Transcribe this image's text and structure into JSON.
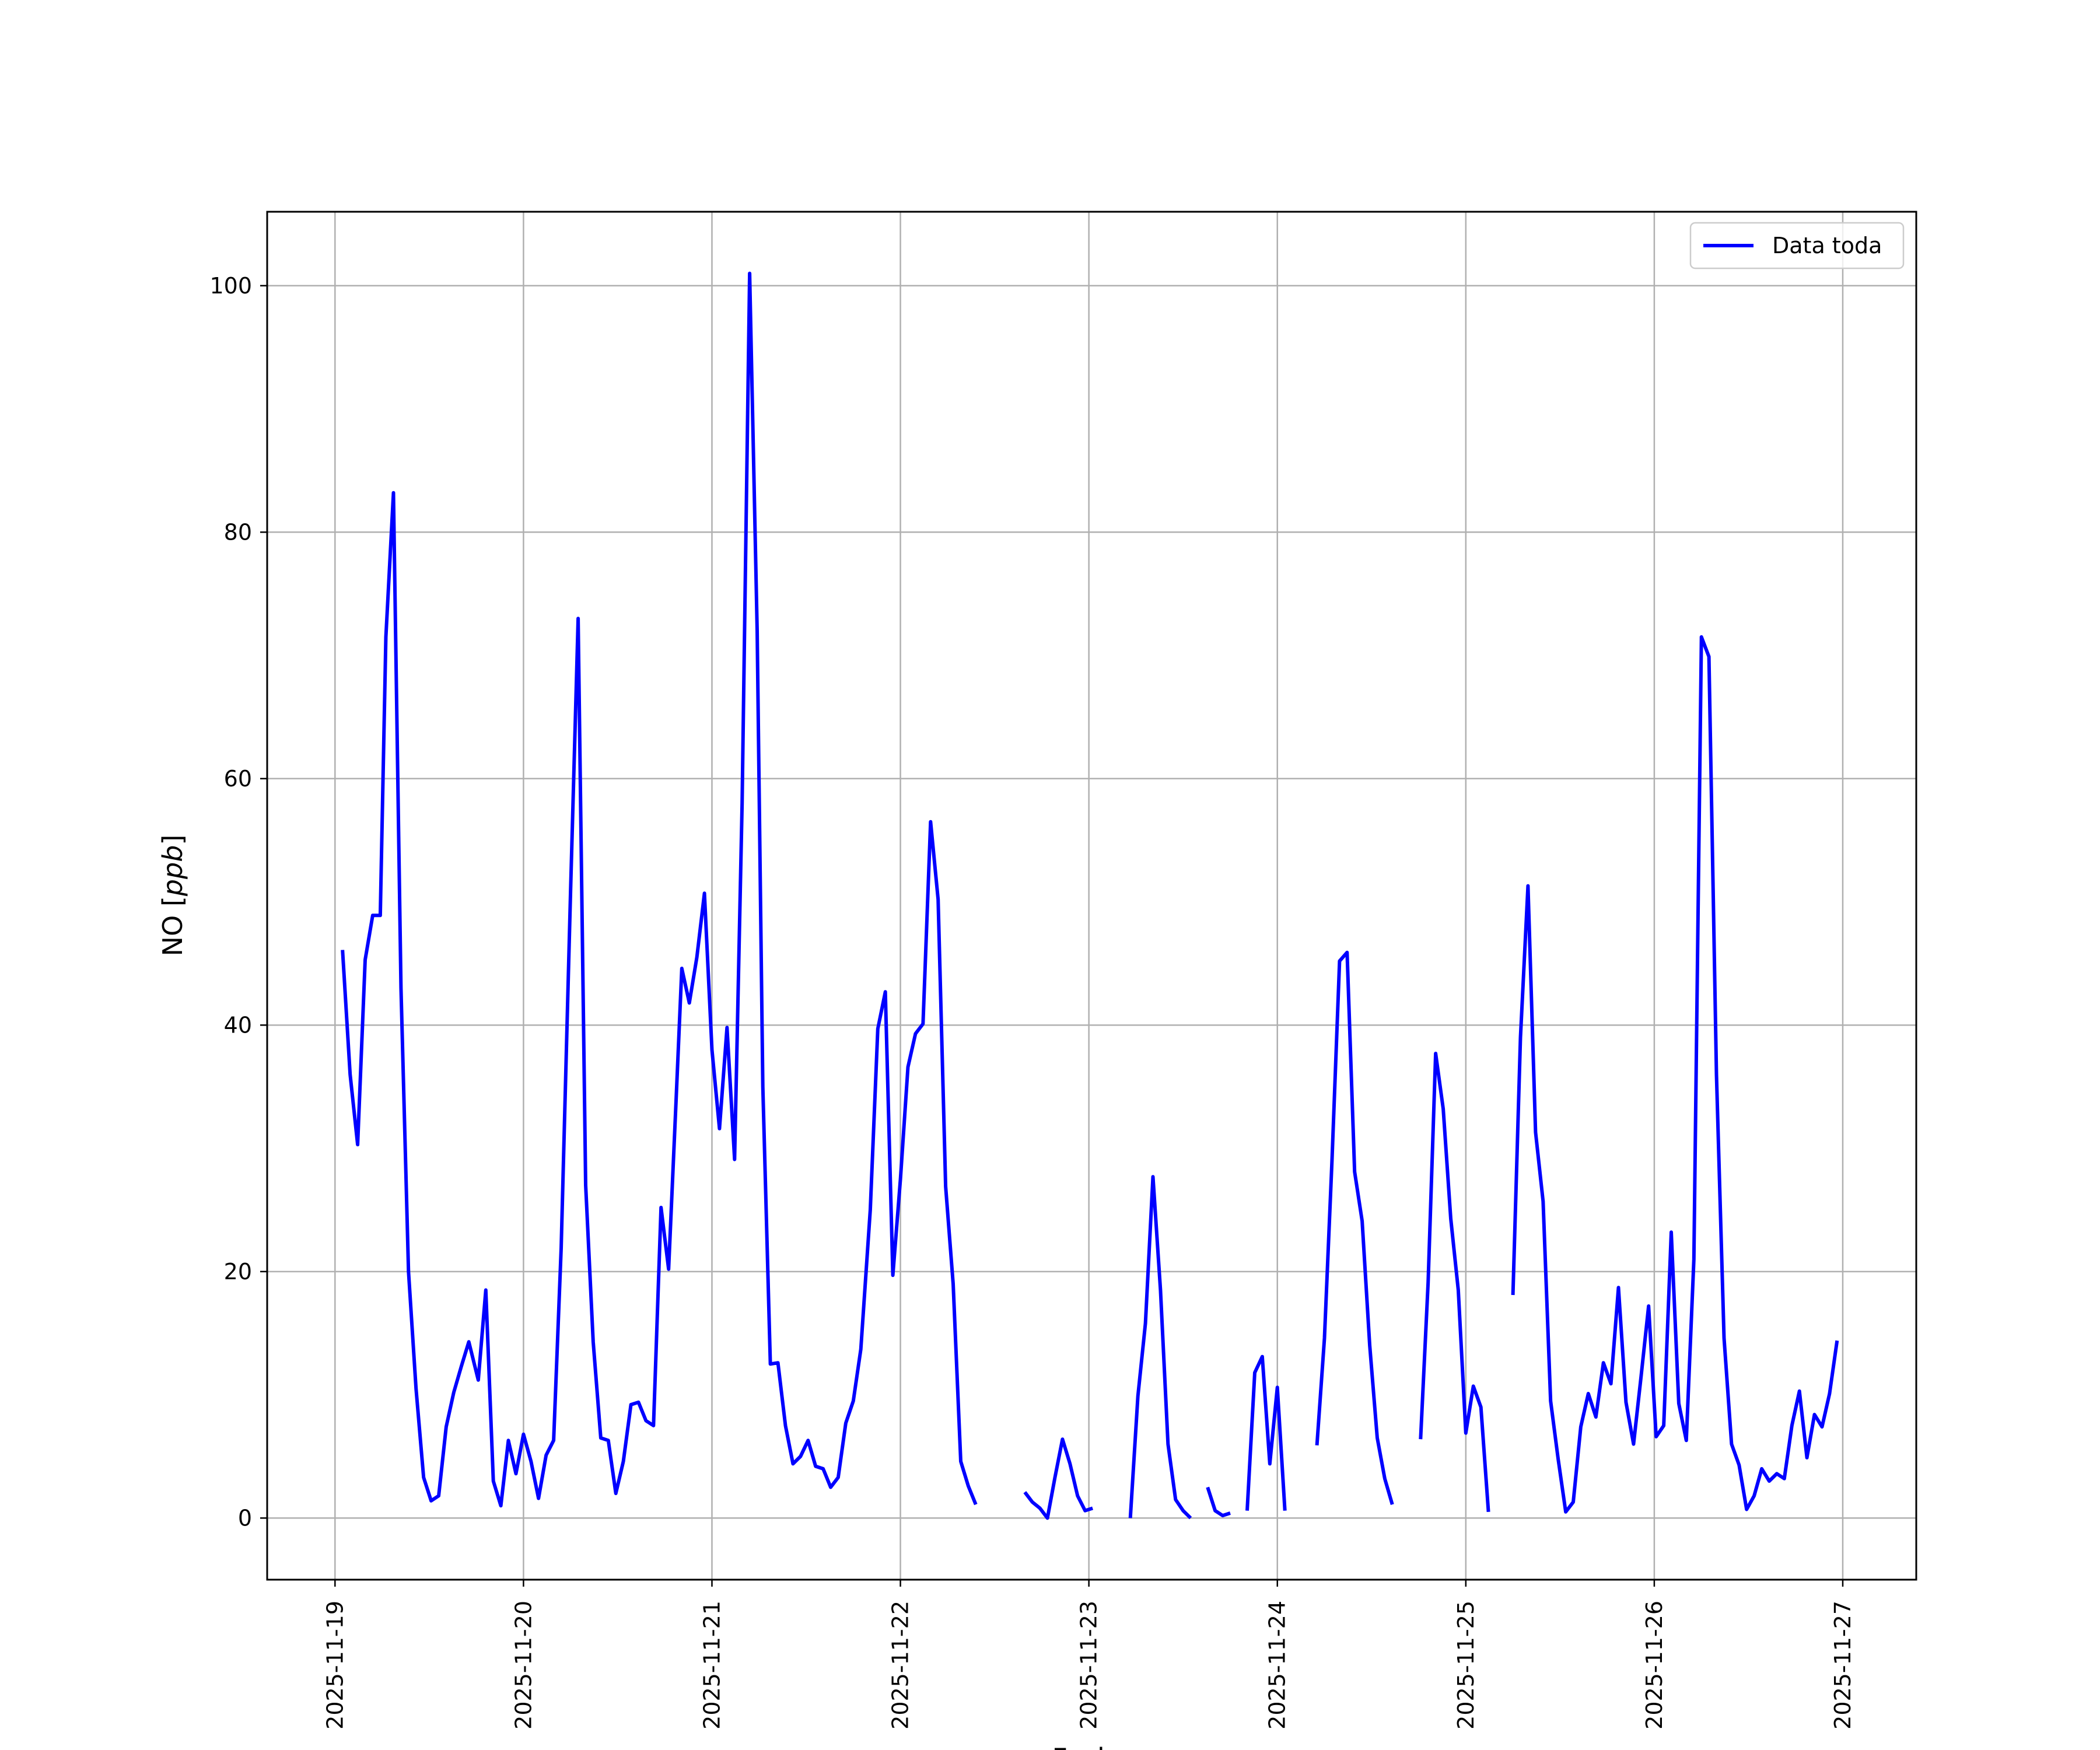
{
  "chart_data": {
    "type": "line",
    "xlabel": "Fecha",
    "ylabel": "NO [ppb]",
    "ylabel_parts": {
      "name": "NO [",
      "unit": "ppb",
      "close": "]"
    },
    "ylim": [
      -5,
      106
    ],
    "y_ticks": [
      0,
      20,
      40,
      60,
      80,
      100
    ],
    "x_ticks": [
      "2025-11-19",
      "2025-11-20",
      "2025-11-21",
      "2025-11-22",
      "2025-11-23",
      "2025-11-24",
      "2025-11-25",
      "2025-11-26",
      "2025-11-27"
    ],
    "x_unit": "days",
    "xlim_days": [
      -0.36,
      8.39
    ],
    "grid": true,
    "legend_position": "top-right",
    "colors": {
      "line": "#0000ff",
      "grid": "#b0b0b0",
      "axes": "#000000"
    },
    "series": [
      {
        "name": "Data toda",
        "segments": [
          [
            [
              0.04,
              46.1
            ],
            [
              0.08,
              36.0
            ],
            [
              0.12,
              30.3
            ],
            [
              0.16,
              45.3
            ],
            [
              0.2,
              48.9
            ],
            [
              0.24,
              48.9
            ],
            [
              0.27,
              71.5
            ],
            [
              0.31,
              83.2
            ],
            [
              0.35,
              43.0
            ],
            [
              0.39,
              20.0
            ],
            [
              0.43,
              10.5
            ],
            [
              0.47,
              3.3
            ],
            [
              0.51,
              1.4
            ],
            [
              0.55,
              1.8
            ],
            [
              0.59,
              7.4
            ],
            [
              0.63,
              10.2
            ],
            [
              0.67,
              12.3
            ],
            [
              0.71,
              14.3
            ],
            [
              0.76,
              11.2
            ],
            [
              0.8,
              18.5
            ],
            [
              0.84,
              3.0
            ],
            [
              0.88,
              1.0
            ],
            [
              0.92,
              6.3
            ],
            [
              0.96,
              3.6
            ],
            [
              1.0,
              6.8
            ],
            [
              1.04,
              4.6
            ],
            [
              1.08,
              1.6
            ],
            [
              1.12,
              5.1
            ],
            [
              1.16,
              6.3
            ],
            [
              1.2,
              21.9
            ],
            [
              1.25,
              51.0
            ],
            [
              1.29,
              73.0
            ],
            [
              1.33,
              27.0
            ],
            [
              1.37,
              14.3
            ],
            [
              1.41,
              6.5
            ],
            [
              1.45,
              6.3
            ],
            [
              1.49,
              2.0
            ],
            [
              1.53,
              4.6
            ],
            [
              1.57,
              9.2
            ],
            [
              1.61,
              9.4
            ],
            [
              1.65,
              7.9
            ],
            [
              1.69,
              7.5
            ],
            [
              1.73,
              25.2
            ],
            [
              1.77,
              20.2
            ],
            [
              1.81,
              34.0
            ],
            [
              1.84,
              44.6
            ],
            [
              1.88,
              41.8
            ],
            [
              1.92,
              45.5
            ],
            [
              1.96,
              50.7
            ],
            [
              2.0,
              38.0
            ],
            [
              2.04,
              31.6
            ],
            [
              2.08,
              39.8
            ],
            [
              2.12,
              29.1
            ],
            [
              2.16,
              58.0
            ],
            [
              2.2,
              101.0
            ],
            [
              2.24,
              72.0
            ],
            [
              2.27,
              35.0
            ],
            [
              2.31,
              12.5
            ],
            [
              2.35,
              12.6
            ],
            [
              2.39,
              7.5
            ],
            [
              2.43,
              4.4
            ],
            [
              2.47,
              5.0
            ],
            [
              2.51,
              6.3
            ],
            [
              2.55,
              4.2
            ],
            [
              2.59,
              4.0
            ],
            [
              2.63,
              2.5
            ],
            [
              2.67,
              3.3
            ],
            [
              2.71,
              7.7
            ],
            [
              2.75,
              9.5
            ],
            [
              2.79,
              13.7
            ],
            [
              2.84,
              25.0
            ],
            [
              2.88,
              39.7
            ],
            [
              2.92,
              42.7
            ],
            [
              2.96,
              19.7
            ],
            [
              3.0,
              27.5
            ],
            [
              3.04,
              36.6
            ],
            [
              3.08,
              39.3
            ],
            [
              3.12,
              40.1
            ],
            [
              3.16,
              56.5
            ],
            [
              3.2,
              50.2
            ],
            [
              3.24,
              26.9
            ],
            [
              3.28,
              19.0
            ],
            [
              3.32,
              4.6
            ],
            [
              3.36,
              2.6
            ],
            [
              3.4,
              1.1
            ]
          ],
          [
            [
              3.66,
              2.1
            ],
            [
              3.7,
              1.3
            ],
            [
              3.74,
              0.8
            ],
            [
              3.78,
              0.0
            ],
            [
              3.82,
              3.3
            ],
            [
              3.86,
              6.4
            ],
            [
              3.9,
              4.4
            ],
            [
              3.94,
              1.8
            ],
            [
              3.98,
              0.6
            ],
            [
              4.02,
              0.8
            ]
          ],
          [
            [
              4.22,
              0.0
            ],
            [
              4.26,
              9.9
            ],
            [
              4.3,
              15.8
            ],
            [
              4.34,
              27.7
            ],
            [
              4.38,
              18.5
            ],
            [
              4.42,
              6.0
            ],
            [
              4.46,
              1.5
            ],
            [
              4.5,
              0.6
            ],
            [
              4.54,
              0.0
            ]
          ],
          [
            [
              4.63,
              2.5
            ],
            [
              4.67,
              0.6
            ],
            [
              4.71,
              0.2
            ],
            [
              4.75,
              0.4
            ]
          ],
          [
            [
              4.84,
              0.6
            ],
            [
              4.88,
              11.8
            ],
            [
              4.92,
              13.1
            ],
            [
              4.96,
              4.4
            ],
            [
              5.0,
              10.6
            ],
            [
              5.04,
              0.6
            ]
          ],
          [
            [
              5.21,
              5.9
            ],
            [
              5.25,
              14.6
            ],
            [
              5.29,
              29.0
            ],
            [
              5.33,
              45.2
            ],
            [
              5.37,
              45.9
            ],
            [
              5.41,
              28.1
            ],
            [
              5.45,
              24.1
            ],
            [
              5.49,
              14.0
            ],
            [
              5.53,
              6.5
            ],
            [
              5.57,
              3.2
            ],
            [
              5.61,
              1.1
            ]
          ],
          [
            [
              5.76,
              6.4
            ],
            [
              5.8,
              19.1
            ],
            [
              5.84,
              37.7
            ],
            [
              5.88,
              33.2
            ],
            [
              5.92,
              24.3
            ],
            [
              5.96,
              18.5
            ],
            [
              6.0,
              6.9
            ],
            [
              6.04,
              10.7
            ],
            [
              6.08,
              9.0
            ],
            [
              6.12,
              0.5
            ]
          ],
          [
            [
              6.25,
              18.1
            ],
            [
              6.29,
              39.0
            ],
            [
              6.33,
              51.3
            ],
            [
              6.37,
              31.3
            ],
            [
              6.41,
              25.7
            ],
            [
              6.45,
              9.5
            ],
            [
              6.49,
              4.8
            ],
            [
              6.53,
              0.5
            ],
            [
              6.57,
              1.3
            ],
            [
              6.61,
              7.4
            ],
            [
              6.65,
              10.1
            ],
            [
              6.69,
              8.2
            ],
            [
              6.73,
              12.6
            ],
            [
              6.77,
              10.9
            ],
            [
              6.81,
              18.7
            ],
            [
              6.85,
              9.4
            ],
            [
              6.89,
              6.0
            ],
            [
              6.93,
              11.5
            ],
            [
              6.97,
              17.2
            ],
            [
              7.01,
              6.6
            ],
            [
              7.05,
              7.5
            ],
            [
              7.09,
              23.2
            ],
            [
              7.13,
              9.3
            ],
            [
              7.17,
              6.3
            ],
            [
              7.21,
              21.0
            ],
            [
              7.25,
              71.5
            ],
            [
              7.29,
              69.9
            ],
            [
              7.33,
              36.0
            ],
            [
              7.37,
              14.6
            ],
            [
              7.41,
              6.0
            ],
            [
              7.45,
              4.3
            ],
            [
              7.49,
              0.7
            ],
            [
              7.53,
              1.8
            ],
            [
              7.57,
              4.0
            ],
            [
              7.61,
              3.0
            ],
            [
              7.65,
              3.6
            ],
            [
              7.69,
              3.2
            ],
            [
              7.73,
              7.5
            ],
            [
              7.77,
              10.3
            ],
            [
              7.81,
              4.9
            ],
            [
              7.85,
              8.4
            ],
            [
              7.89,
              7.4
            ],
            [
              7.93,
              10.1
            ],
            [
              7.97,
              14.4
            ]
          ]
        ]
      }
    ]
  }
}
